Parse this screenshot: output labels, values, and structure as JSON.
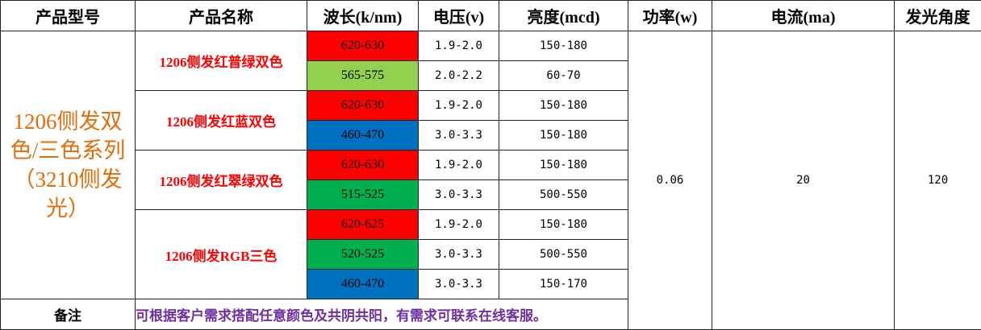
{
  "header": [
    "产品型号",
    "产品名称",
    "波长(k/nm)",
    "电压(v)",
    "亮度(mcd)",
    "功率(w)",
    "电流(ma)",
    "发光角度"
  ],
  "series_label": "1206侧发双色/三色系列（3210侧发光）",
  "groups": [
    {
      "name": "1206侧发红普绿双色",
      "rows": [
        {
          "wavelength": "620-630",
          "color": "#ff0000",
          "voltage": "1.9-2.0",
          "brightness": "150-180"
        },
        {
          "wavelength": "565-575",
          "color": "#92d050",
          "voltage": "2.0-2.2",
          "brightness": "60-70"
        }
      ]
    },
    {
      "name": "1206侧发红蓝双色",
      "rows": [
        {
          "wavelength": "620-630",
          "color": "#ff0000",
          "voltage": "1.9-2.0",
          "brightness": "150-180"
        },
        {
          "wavelength": "460-470",
          "color": "#0070c0",
          "voltage": "3.0-3.3",
          "brightness": "150-180"
        }
      ]
    },
    {
      "name": "1206侧发红翠绿双色",
      "rows": [
        {
          "wavelength": "620-630",
          "color": "#ff0000",
          "voltage": "1.9-2.0",
          "brightness": "150-180"
        },
        {
          "wavelength": "515-525",
          "color": "#00b050",
          "voltage": "3.0-3.3",
          "brightness": "500-550"
        }
      ]
    },
    {
      "name": "1206侧发RGB三色",
      "rows": [
        {
          "wavelength": "620-625",
          "color": "#ff0000",
          "voltage": "1.9-2.0",
          "brightness": "150-180"
        },
        {
          "wavelength": "520-525",
          "color": "#00b050",
          "voltage": "3.0-3.3",
          "brightness": "500-550"
        },
        {
          "wavelength": "460-470",
          "color": "#0070c0",
          "voltage": "3.0-3.3",
          "brightness": "150-170"
        }
      ]
    }
  ],
  "power": "0.06",
  "current": "20",
  "angle": "120",
  "note": {
    "label": "备注",
    "text": "可根据客户需求搭配任意颜色及共阴共阳，有需求可联系在线客服。"
  }
}
